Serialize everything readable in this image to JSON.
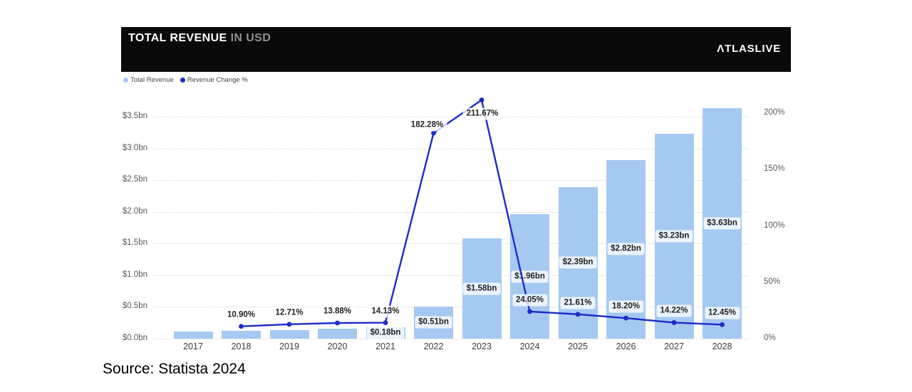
{
  "header": {
    "title": "TOTAL REVENUE",
    "subtitle": "IN USD",
    "logo": "ΛTLASLIVE"
  },
  "legend": [
    {
      "label": "Total Revenue",
      "color": "#a6c8f1"
    },
    {
      "label": "Revenue Change %",
      "color": "#1e2bc8"
    }
  ],
  "source": "Source: Statista 2024",
  "chart_data": {
    "type": "bar+line",
    "title": "TOTAL REVENUE IN USD",
    "categories": [
      "2017",
      "2018",
      "2019",
      "2020",
      "2021",
      "2022",
      "2023",
      "2024",
      "2025",
      "2026",
      "2027",
      "2028"
    ],
    "series": [
      {
        "name": "Total Revenue",
        "type": "bar",
        "axis": "left",
        "unit": "USD bn",
        "color": "#a6c9f2",
        "values": [
          0.11,
          0.12,
          0.14,
          0.16,
          0.18,
          0.51,
          1.58,
          1.96,
          2.39,
          2.82,
          3.23,
          3.63
        ],
        "labels": [
          null,
          null,
          null,
          null,
          "$0.18bn",
          "$0.51bn",
          "$1.58bn",
          "$1.96bn",
          "$2.39bn",
          "$2.82bn",
          "$3.23bn",
          "$3.63bn"
        ]
      },
      {
        "name": "Revenue Change %",
        "type": "line",
        "axis": "right",
        "unit": "%",
        "color": "#1e2bc8",
        "values": [
          null,
          10.9,
          12.71,
          13.88,
          14.13,
          182.28,
          211.67,
          24.05,
          21.61,
          18.2,
          14.22,
          12.45
        ],
        "labels": [
          null,
          "10.90%",
          "12.71%",
          "13.88%",
          "14.13%",
          "182.28%",
          "211.67%",
          "24.05%",
          "21.61%",
          "18.20%",
          "14.22%",
          "12.45%"
        ]
      }
    ],
    "left_axis": {
      "tick_values": [
        0,
        0.5,
        1.0,
        1.5,
        2.0,
        2.5,
        3.0,
        3.5
      ],
      "tick_labels": [
        "$0.0bn",
        "$0.5bn",
        "$1.0bn",
        "$1.5bn",
        "$2.0bn",
        "$2.5bn",
        "$3.0bn",
        "$3.5bn"
      ],
      "min": 0,
      "max": 3.5
    },
    "right_axis": {
      "tick_values": [
        0,
        50,
        100,
        150,
        200
      ],
      "tick_labels": [
        "0%",
        "50%",
        "100%",
        "150%",
        "200%"
      ],
      "min": 0,
      "max": 200
    },
    "grid": "dotted-horizontal",
    "legend_position": "top-left",
    "label_offsets": {
      "182.28%": [
        -9,
        -11
      ],
      "211.67%": [
        1,
        19
      ]
    }
  }
}
